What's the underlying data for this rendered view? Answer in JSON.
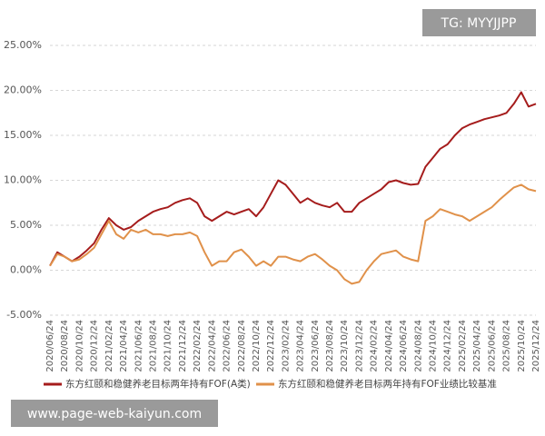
{
  "chart_data": {
    "type": "line",
    "categories": [
      "2020/06/24",
      null,
      "2020/08/24",
      null,
      "2020/10/24",
      null,
      "2020/12/24",
      null,
      "2021/02/24",
      null,
      "2021/04/24",
      null,
      "2021/06/24",
      null,
      "2021/08/24",
      null,
      "2021/10/24",
      null,
      "2021/12/24",
      null,
      "2022/02/24",
      null,
      "2022/04/24",
      null,
      "2022/06/24",
      null,
      "2022/08/24",
      null,
      "2022/10/24",
      null,
      "2022/12/24",
      null,
      "2023/02/24",
      null,
      "2023/04/24",
      null,
      "2023/06/24",
      null,
      "2023/08/24",
      null,
      "2023/10/24",
      null,
      "2023/12/24",
      null,
      "2024/02/24",
      null,
      "2024/04/24",
      null,
      "2024/06/24",
      null,
      "2024/08/24",
      null,
      "2024/10/24",
      null,
      "2024/12/24",
      null,
      "2025/02/24",
      null,
      "2025/04/24",
      null,
      "2025/06/24",
      null,
      "2025/08/24",
      null,
      "2025/10/24",
      null,
      "2025/12/24"
    ],
    "series": [
      {
        "name": "东方红颐和稳健养老目标两年持有FOF(A类)",
        "color": "#a51c1c",
        "values": [
          0.5,
          2.0,
          1.5,
          1.0,
          1.5,
          2.2,
          3.0,
          4.5,
          5.8,
          5.0,
          4.5,
          4.8,
          5.5,
          6.0,
          6.5,
          6.8,
          7.0,
          7.5,
          7.8,
          8.0,
          7.5,
          6.0,
          5.5,
          6.0,
          6.5,
          6.2,
          6.5,
          6.8,
          6.0,
          7.0,
          8.5,
          10.0,
          9.5,
          8.5,
          7.5,
          8.0,
          7.5,
          7.2,
          7.0,
          7.5,
          6.5,
          6.5,
          7.5,
          8.0,
          8.5,
          9.0,
          9.8,
          10.0,
          9.7,
          9.5,
          9.6,
          11.5,
          12.5,
          13.5,
          14.0,
          15.0,
          15.8,
          16.2,
          16.5,
          16.8,
          17.0,
          17.2,
          17.5,
          18.5,
          19.8,
          18.2,
          18.5
        ]
      },
      {
        "name": "东方红颐和稳健养老目标两年持有FOF业绩比较基准",
        "color": "#e0914a",
        "values": [
          0.5,
          1.8,
          1.5,
          1.0,
          1.2,
          1.8,
          2.5,
          4.0,
          5.5,
          4.0,
          3.5,
          4.5,
          4.2,
          4.5,
          4.0,
          4.0,
          3.8,
          4.0,
          4.0,
          4.2,
          3.8,
          2.0,
          0.5,
          1.0,
          1.0,
          2.0,
          2.3,
          1.5,
          0.5,
          1.0,
          0.5,
          1.5,
          1.5,
          1.2,
          1.0,
          1.5,
          1.8,
          1.2,
          0.5,
          0.0,
          -1.0,
          -1.5,
          -1.3,
          0.0,
          1.0,
          1.8,
          2.0,
          2.2,
          1.5,
          1.2,
          1.0,
          5.5,
          6.0,
          6.8,
          6.5,
          6.2,
          6.0,
          5.5,
          6.0,
          6.5,
          7.0,
          7.8,
          8.5,
          9.2,
          9.5,
          9.0,
          8.8
        ]
      }
    ],
    "ylim": [
      -5,
      25
    ],
    "yticks": [
      {
        "value": -5,
        "label": "-5.00%"
      },
      {
        "value": 0,
        "label": "0.00%"
      },
      {
        "value": 5,
        "label": "5.00%"
      },
      {
        "value": 10,
        "label": "10.00%"
      },
      {
        "value": 15,
        "label": "15.00%"
      },
      {
        "value": 20,
        "label": "20.00%"
      },
      {
        "value": 25,
        "label": "25.00%"
      }
    ],
    "grid": true,
    "legend": "bottom"
  },
  "watermarks": [
    "TG: MYYJJPP",
    "www.page-web-kaiyun.com"
  ]
}
